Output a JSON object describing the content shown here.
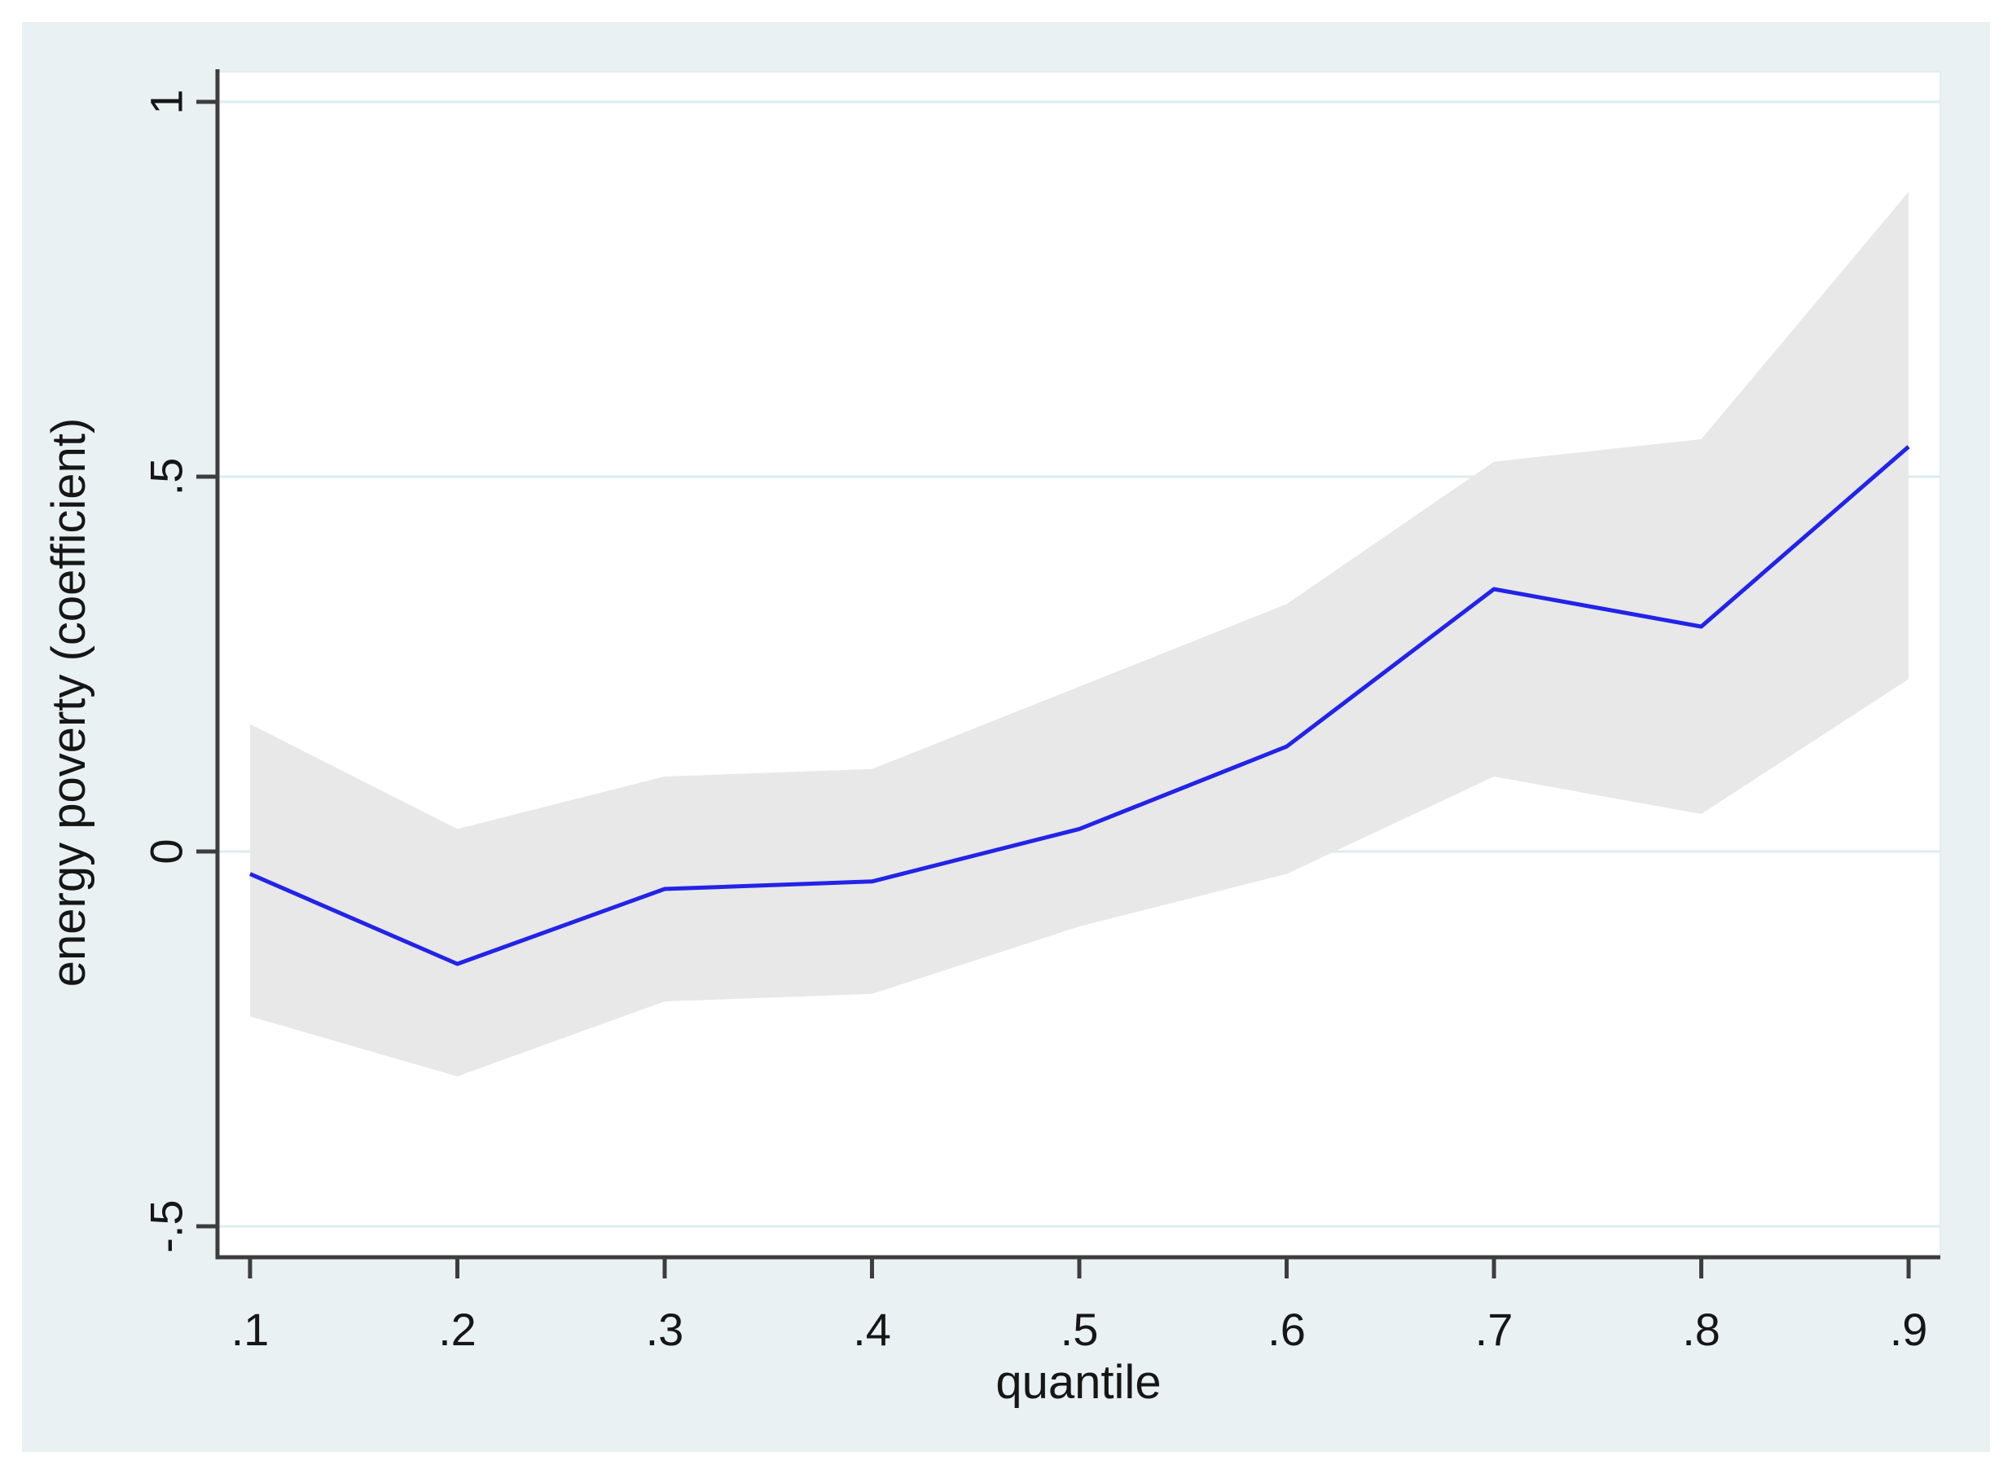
{
  "figure": {
    "description": "Quantile regression coefficient plot of energy poverty with 95% confidence band"
  },
  "colors": {
    "page_background": "#ffffff",
    "graph_background": "#eaf1f3",
    "plot_background": "#ffffff",
    "grid": "#ddecef",
    "plot_frame": "#e3eef1",
    "axis": "#3d3d3d",
    "tick_text": "#161616",
    "line": "#2323e8",
    "ci_band": "#e8e8e8"
  },
  "chart_data": {
    "type": "line",
    "title": "",
    "xlabel": "quantile",
    "ylabel": "energy poverty (coefficient)",
    "x": [
      0.1,
      0.2,
      0.3,
      0.4,
      0.5,
      0.6,
      0.7,
      0.8,
      0.9
    ],
    "series": [
      {
        "name": "coefficient",
        "values": [
          -0.03,
          -0.15,
          -0.05,
          -0.04,
          0.03,
          0.14,
          0.35,
          0.3,
          0.54
        ]
      },
      {
        "name": "ci_upper",
        "values": [
          0.17,
          0.03,
          0.1,
          0.11,
          0.22,
          0.33,
          0.52,
          0.55,
          0.88
        ]
      },
      {
        "name": "ci_lower",
        "values": [
          -0.22,
          -0.3,
          -0.2,
          -0.19,
          -0.1,
          -0.03,
          0.1,
          0.05,
          0.23
        ]
      }
    ],
    "band": {
      "upper": "ci_upper",
      "lower": "ci_lower",
      "meaning": "confidence interval around coefficient"
    },
    "x_ticks": {
      "values": [
        0.1,
        0.2,
        0.3,
        0.4,
        0.5,
        0.6,
        0.7,
        0.8,
        0.9
      ],
      "labels": [
        ".1",
        ".2",
        ".3",
        ".4",
        ".5",
        ".6",
        ".7",
        ".8",
        ".9"
      ]
    },
    "y_ticks": {
      "values": [
        1,
        0.5,
        0,
        -0.5
      ],
      "labels": [
        "1",
        ".5",
        "0",
        "-.5"
      ]
    },
    "xlim": [
      0.0843,
      0.9153
    ],
    "ylim": [
      -0.5413,
      1.0402
    ],
    "grid": "horizontal",
    "legend": "none"
  }
}
